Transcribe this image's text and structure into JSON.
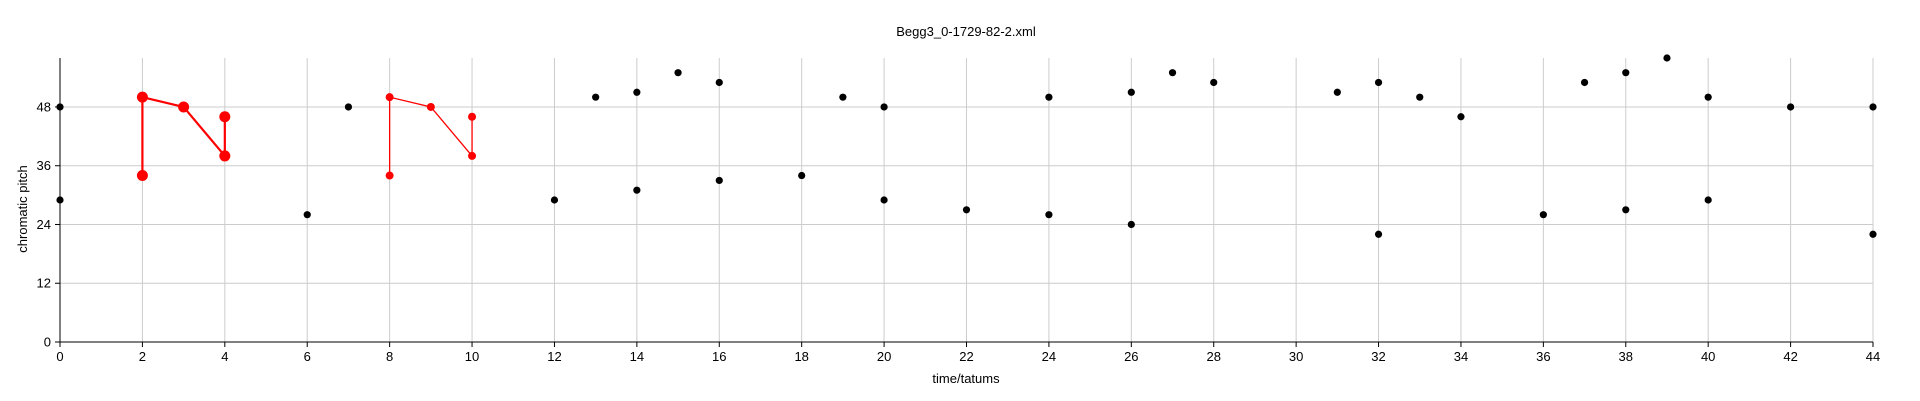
{
  "chart_data": {
    "type": "scatter",
    "title": "Begg3_0-1729-82-2.xml",
    "xlabel": "time/tatums",
    "ylabel": "chromatic pitch",
    "xlim": [
      0,
      44
    ],
    "ylim": [
      0,
      58
    ],
    "xticks": [
      0,
      2,
      4,
      6,
      8,
      10,
      12,
      14,
      16,
      18,
      20,
      22,
      24,
      26,
      28,
      30,
      32,
      34,
      36,
      38,
      40,
      42,
      44
    ],
    "yticks": [
      0,
      12,
      24,
      36,
      48
    ],
    "grid": true,
    "colors": {
      "notes": "#000000",
      "pattern": "#ff0000",
      "grid": "#cccccc",
      "axis": "#000000"
    },
    "series": [
      {
        "values": [
          {
            "x": 0,
            "y": 48
          },
          {
            "x": 0,
            "y": 29
          },
          {
            "x": 6,
            "y": 26
          },
          {
            "x": 7,
            "y": 48
          },
          {
            "x": 12,
            "y": 29
          },
          {
            "x": 13,
            "y": 50
          },
          {
            "x": 14,
            "y": 51
          },
          {
            "x": 14,
            "y": 31
          },
          {
            "x": 15,
            "y": 55
          },
          {
            "x": 16,
            "y": 53
          },
          {
            "x": 16,
            "y": 33
          },
          {
            "x": 18,
            "y": 34
          },
          {
            "x": 19,
            "y": 50
          },
          {
            "x": 20,
            "y": 48
          },
          {
            "x": 20,
            "y": 29
          },
          {
            "x": 22,
            "y": 27
          },
          {
            "x": 24,
            "y": 50
          },
          {
            "x": 24,
            "y": 26
          },
          {
            "x": 26,
            "y": 51
          },
          {
            "x": 26,
            "y": 24
          },
          {
            "x": 27,
            "y": 55
          },
          {
            "x": 28,
            "y": 53
          },
          {
            "x": 31,
            "y": 51
          },
          {
            "x": 32,
            "y": 53
          },
          {
            "x": 32,
            "y": 22
          },
          {
            "x": 33,
            "y": 50
          },
          {
            "x": 34,
            "y": 46
          },
          {
            "x": 36,
            "y": 26
          },
          {
            "x": 37,
            "y": 53
          },
          {
            "x": 38,
            "y": 55
          },
          {
            "x": 38,
            "y": 27
          },
          {
            "x": 39,
            "y": 58
          },
          {
            "x": 40,
            "y": 50
          },
          {
            "x": 40,
            "y": 29
          },
          {
            "x": 42,
            "y": 48
          },
          {
            "x": 44,
            "y": 48
          },
          {
            "x": 44,
            "y": 22
          }
        ]
      }
    ],
    "patterns": [
      {
        "marker": "large",
        "path": [
          {
            "x": 2,
            "y": 34
          },
          {
            "x": 2,
            "y": 50
          },
          {
            "x": 3,
            "y": 48
          },
          {
            "x": 4,
            "y": 38
          }
        ],
        "extra_points": [
          {
            "x": 4,
            "y": 46
          }
        ]
      },
      {
        "marker": "small",
        "path": [
          {
            "x": 8,
            "y": 34
          },
          {
            "x": 8,
            "y": 50
          },
          {
            "x": 9,
            "y": 48
          },
          {
            "x": 10,
            "y": 38
          }
        ],
        "extra_points": [
          {
            "x": 10,
            "y": 46
          }
        ]
      }
    ]
  }
}
